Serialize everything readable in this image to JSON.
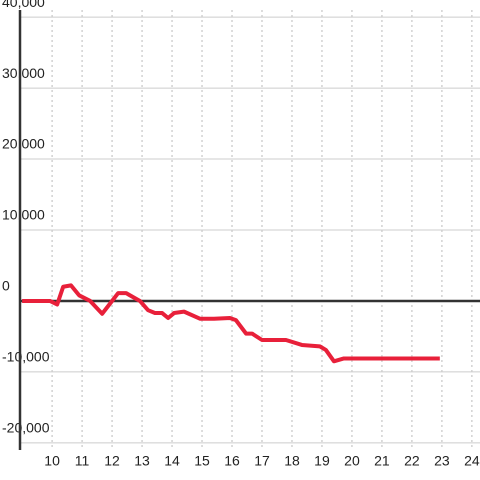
{
  "chart_data": {
    "type": "line",
    "x": [
      9.0,
      9.93,
      10.17,
      10.37,
      10.63,
      10.9,
      11.27,
      11.67,
      12.0,
      12.2,
      12.47,
      12.93,
      13.2,
      13.43,
      13.67,
      13.87,
      14.07,
      14.4,
      14.93,
      15.4,
      15.93,
      16.13,
      16.47,
      16.67,
      17.0,
      17.8,
      18.33,
      18.93,
      19.13,
      19.4,
      19.73,
      22.93
    ],
    "series": [
      {
        "color": "#e8203a",
        "values": [
          0,
          0,
          -500,
          2000,
          2200,
          800,
          0,
          -1800,
          0,
          1100,
          1100,
          0,
          -1300,
          -1700,
          -1700,
          -2400,
          -1700,
          -1500,
          -2500,
          -2500,
          -2400,
          -2700,
          -4600,
          -4600,
          -5500,
          -5500,
          -6200,
          -6400,
          -6900,
          -8500,
          -8100,
          -8100
        ]
      }
    ],
    "xlim": [
      8.93,
      24.27
    ],
    "xticks": [
      10,
      11,
      12,
      13,
      14,
      15,
      16,
      17,
      18,
      19,
      20,
      21,
      22,
      23,
      24
    ],
    "ylim": [
      -21000,
      41000
    ],
    "yticks": [
      {
        "value": -20000,
        "label": "-20,000"
      },
      {
        "value": -10000,
        "label": "-10,000"
      },
      0,
      {
        "value": 10000,
        "label": "10,000"
      },
      {
        "value": 20000,
        "label": "20,000"
      },
      {
        "value": 30000,
        "label": "30,000"
      },
      {
        "value": 40000,
        "label": "40,000"
      }
    ],
    "grid": true
  }
}
